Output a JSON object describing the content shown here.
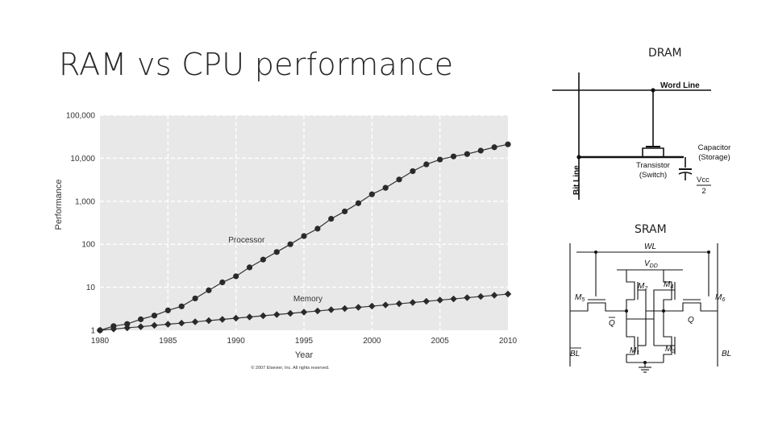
{
  "slide": {
    "title": "RAM vs CPU performance",
    "dram_label": "DRAM",
    "sram_label": "SRAM"
  },
  "chart_data": {
    "type": "line",
    "xlabel": "Year",
    "ylabel": "Performance",
    "xlim": [
      1980,
      2010
    ],
    "ylim": [
      1,
      100000
    ],
    "yscale": "log",
    "grid": true,
    "xticks": [
      "1980",
      "1985",
      "1990",
      "1995",
      "2000",
      "2005",
      "2010"
    ],
    "yticks": [
      "1",
      "10",
      "100",
      "1,000",
      "10,000",
      "100,000"
    ],
    "x": [
      1980,
      1981,
      1982,
      1983,
      1984,
      1985,
      1986,
      1987,
      1988,
      1989,
      1990,
      1991,
      1992,
      1993,
      1994,
      1995,
      1996,
      1997,
      1998,
      1999,
      2000,
      2001,
      2002,
      2003,
      2004,
      2005,
      2006,
      2007,
      2008,
      2009,
      2010
    ],
    "series": [
      {
        "name": "Processor",
        "values": [
          1,
          1.25,
          1.4,
          1.8,
          2.2,
          2.9,
          3.6,
          5.5,
          8.5,
          13,
          18,
          29,
          44,
          66,
          100,
          155,
          230,
          390,
          580,
          900,
          1450,
          2050,
          3200,
          5000,
          7200,
          9300,
          11000,
          12500,
          15000,
          18000,
          21000
        ]
      },
      {
        "name": "Memory",
        "values": [
          1,
          1.07,
          1.14,
          1.21,
          1.3,
          1.38,
          1.47,
          1.57,
          1.68,
          1.79,
          1.91,
          2.04,
          2.17,
          2.32,
          2.47,
          2.64,
          2.81,
          3.0,
          3.2,
          3.41,
          3.64,
          3.88,
          4.14,
          4.42,
          4.71,
          5.03,
          5.36,
          5.72,
          6.1,
          6.51,
          6.95
        ]
      }
    ],
    "annotations": [
      "© 2007 Elsevier, Inc. All rights reserved."
    ],
    "colors": {
      "plot_bg": "#e8e8e8",
      "grid": "#ffffff",
      "line": "#333333"
    }
  },
  "dram": {
    "word_line": "Word Line",
    "bit_line": "Bit Line",
    "transistor": "Transistor",
    "switch": "(Switch)",
    "capacitor": "Capacitor",
    "storage": "(Storage)",
    "vcc": "Vcc",
    "vcc_den": "2"
  },
  "sram": {
    "wl": "WL",
    "vdd": "V",
    "vdd_sub": "DD",
    "m1": "M",
    "m1_sub": "1",
    "m2": "M",
    "m2_sub": "2",
    "m3": "M",
    "m3_sub": "3",
    "m4": "M",
    "m4_sub": "4",
    "m5": "M",
    "m5_sub": "5",
    "m6": "M",
    "m6_sub": "6",
    "q": "Q",
    "qbar": "Q",
    "bl": "BL",
    "blbar": "BL"
  }
}
